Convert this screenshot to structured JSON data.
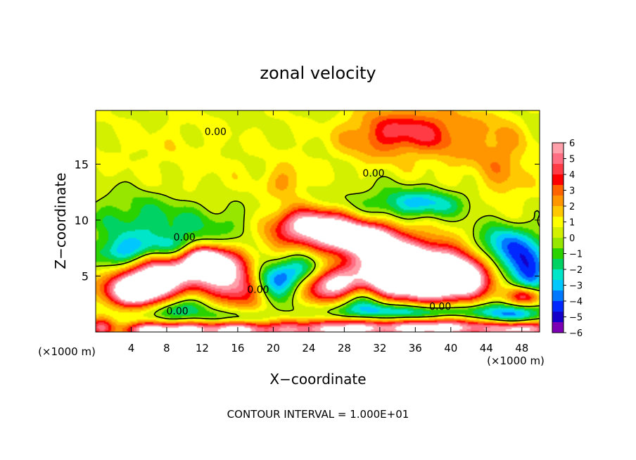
{
  "chart_data": {
    "type": "heatmap",
    "title": "zonal velocity",
    "xlabel": "X−coordinate",
    "ylabel": "Z−coordinate",
    "x_unit_left": "(×1000 m)",
    "x_unit_right": "(×1000 m)",
    "xlim": [
      0,
      50
    ],
    "ylim": [
      0,
      19.8
    ],
    "x_ticks": [
      {
        "value": 4,
        "label": "4"
      },
      {
        "value": 8,
        "label": "8"
      },
      {
        "value": 12,
        "label": "12"
      },
      {
        "value": 16,
        "label": "16"
      },
      {
        "value": 20,
        "label": "20"
      },
      {
        "value": 24,
        "label": "24"
      },
      {
        "value": 28,
        "label": "28"
      },
      {
        "value": 32,
        "label": "32"
      },
      {
        "value": 36,
        "label": "36"
      },
      {
        "value": 40,
        "label": "40"
      },
      {
        "value": 44,
        "label": "44"
      },
      {
        "value": 48,
        "label": "48"
      }
    ],
    "y_ticks": [
      {
        "value": 5,
        "label": "5"
      },
      {
        "value": 10,
        "label": "10"
      },
      {
        "value": 15,
        "label": "15"
      }
    ],
    "colorbar": {
      "range": [
        -6,
        6
      ],
      "labels": [
        {
          "value": 6,
          "label": "6"
        },
        {
          "value": 5,
          "label": "5"
        },
        {
          "value": 4,
          "label": "4"
        },
        {
          "value": 3,
          "label": "3"
        },
        {
          "value": 2,
          "label": "2"
        },
        {
          "value": 1,
          "label": "1"
        },
        {
          "value": 0,
          "label": "0"
        },
        {
          "value": -1,
          "label": "−1"
        },
        {
          "value": -2,
          "label": "−2"
        },
        {
          "value": -3,
          "label": "−3"
        },
        {
          "value": -4,
          "label": "−4"
        },
        {
          "value": -5,
          "label": "−5"
        },
        {
          "value": -6,
          "label": "−6"
        }
      ],
      "colors": [
        "#7c00b4",
        "#1400c8",
        "#0028ff",
        "#0078ff",
        "#00c8ff",
        "#00e6c8",
        "#00d264",
        "#2ad200",
        "#96e600",
        "#d2f000",
        "#ffff00",
        "#ffc800",
        "#ff9600",
        "#ff6400",
        "#ff0000",
        "#ff3c46",
        "#ff6e82",
        "#ffa0aa"
      ],
      "over_color": "#ffffff"
    },
    "blobs": [
      {
        "x": 25,
        "z": 10,
        "sx": 40,
        "sz": 12,
        "v": 0.7
      },
      {
        "x": 36,
        "z": 18,
        "sx": 3.5,
        "sz": 1.5,
        "v": 3.2
      },
      {
        "x": 31,
        "z": 17.5,
        "sx": 3,
        "sz": 1.5,
        "v": 1.6
      },
      {
        "x": 42,
        "z": 17,
        "sx": 3,
        "sz": 2,
        "v": 1.2
      },
      {
        "x": 46,
        "z": 15,
        "sx": 2,
        "sz": 3,
        "v": 1.5
      },
      {
        "x": 8,
        "z": 16,
        "sx": 6,
        "sz": 3,
        "v": 0.4
      },
      {
        "x": 37,
        "z": 11.5,
        "sx": 3.5,
        "sz": 0.9,
        "v": -3.2
      },
      {
        "x": 31,
        "z": 11,
        "sx": 4,
        "sz": 1.5,
        "v": -1.4
      },
      {
        "x": 4,
        "z": 10,
        "sx": 4,
        "sz": 2,
        "v": -1.8
      },
      {
        "x": 10,
        "z": 9.5,
        "sx": 4,
        "sz": 1.5,
        "v": -1.5
      },
      {
        "x": 17,
        "z": 9.5,
        "sx": 3,
        "sz": 1.2,
        "v": -1.2
      },
      {
        "x": 21.5,
        "z": 13.5,
        "sx": 1.5,
        "sz": 1,
        "v": 1.6
      },
      {
        "x": 3.5,
        "z": 7,
        "sx": 2.5,
        "sz": 1,
        "v": -3.8
      },
      {
        "x": 10,
        "z": 7.5,
        "sx": 3,
        "sz": 0.8,
        "v": -2.5
      },
      {
        "x": 27,
        "z": 8.8,
        "sx": 5,
        "sz": 1.3,
        "v": 5.5
      },
      {
        "x": 24,
        "z": 9.8,
        "sx": 3,
        "sz": 0.9,
        "v": 3.5
      },
      {
        "x": 30,
        "z": 8.3,
        "sx": 2.5,
        "sz": 0.8,
        "v": 4.5
      },
      {
        "x": 7,
        "z": 5.2,
        "sx": 3,
        "sz": 1.4,
        "v": 6.5
      },
      {
        "x": 4.5,
        "z": 3.6,
        "sx": 2.5,
        "sz": 1,
        "v": 7
      },
      {
        "x": 13.5,
        "z": 5.8,
        "sx": 2.5,
        "sz": 1.2,
        "v": 6.3
      },
      {
        "x": 17,
        "z": 4,
        "sx": 2.5,
        "sz": 1.2,
        "v": 5.5
      },
      {
        "x": 12,
        "z": 6.8,
        "sx": 1.5,
        "sz": 0.8,
        "v": 5
      },
      {
        "x": 20.5,
        "z": 6.2,
        "sx": 2,
        "sz": 1,
        "v": 2
      },
      {
        "x": 35,
        "z": 6.5,
        "sx": 4.5,
        "sz": 1.2,
        "v": 7
      },
      {
        "x": 38,
        "z": 4.2,
        "sx": 3.5,
        "sz": 1.3,
        "v": 7.5
      },
      {
        "x": 32.5,
        "z": 4.2,
        "sx": 2,
        "sz": 1.2,
        "v": 4
      },
      {
        "x": 42,
        "z": 5.2,
        "sx": 2,
        "sz": 1.3,
        "v": 4.5
      },
      {
        "x": 23.5,
        "z": 5.2,
        "sx": 3.5,
        "sz": 1.5,
        "v": -5.5
      },
      {
        "x": 19.5,
        "z": 4.5,
        "sx": 2,
        "sz": 1.2,
        "v": -4.5
      },
      {
        "x": 26.5,
        "z": 4.2,
        "sx": 2.6,
        "sz": 1.2,
        "v": 10
      },
      {
        "x": 29.5,
        "z": 3,
        "sx": 2.5,
        "sz": 1,
        "v": -4
      },
      {
        "x": 46,
        "z": 7.5,
        "sx": 2.5,
        "sz": 1.5,
        "v": -4.5
      },
      {
        "x": 49,
        "z": 5.5,
        "sx": 1.5,
        "sz": 1.5,
        "v": -4.5
      },
      {
        "x": 48.5,
        "z": 3.2,
        "sx": 1.3,
        "sz": 0.6,
        "v": 5
      },
      {
        "x": 9,
        "z": 2,
        "sx": 2.5,
        "sz": 0.8,
        "v": -3
      },
      {
        "x": 16,
        "z": 1.2,
        "sx": 3,
        "sz": 0.5,
        "v": -2
      },
      {
        "x": 36,
        "z": 1.8,
        "sx": 6,
        "sz": 0.6,
        "v": -4
      },
      {
        "x": 47,
        "z": 1.5,
        "sx": 2.5,
        "sz": 0.7,
        "v": -3.5
      },
      {
        "x": 0.5,
        "z": 0.4,
        "sx": 1,
        "sz": 0.6,
        "v": 4
      },
      {
        "x": 6,
        "z": 0.2,
        "sx": 2,
        "sz": 0.5,
        "v": 6.5
      },
      {
        "x": 10,
        "z": 0.2,
        "sx": 1.8,
        "sz": 0.5,
        "v": 5
      },
      {
        "x": 16,
        "z": 0.2,
        "sx": 3,
        "sz": 0.6,
        "v": 7
      },
      {
        "x": 22,
        "z": 0.2,
        "sx": 1.5,
        "sz": 0.6,
        "v": 3
      },
      {
        "x": 27.5,
        "z": 0.3,
        "sx": 3,
        "sz": 0.6,
        "v": 6
      },
      {
        "x": 38,
        "z": 0.4,
        "sx": 5,
        "sz": 0.6,
        "v": 7
      },
      {
        "x": 48,
        "z": 0.3,
        "sx": 2.5,
        "sz": 0.5,
        "v": 6
      }
    ],
    "contour_labels": [
      {
        "label": "0.00",
        "x": 13.5,
        "z": 17.9
      },
      {
        "label": "0.00",
        "x": 31.3,
        "z": 14.2
      },
      {
        "label": "0.00",
        "x": 10.0,
        "z": 8.5
      },
      {
        "label": "0.00",
        "x": 18.3,
        "z": 3.8
      },
      {
        "label": "0.00",
        "x": 9.2,
        "z": 1.9
      },
      {
        "label": "0.00",
        "x": 38.8,
        "z": 2.3
      }
    ],
    "footnote": "CONTOUR INTERVAL = 1.000E+01"
  }
}
